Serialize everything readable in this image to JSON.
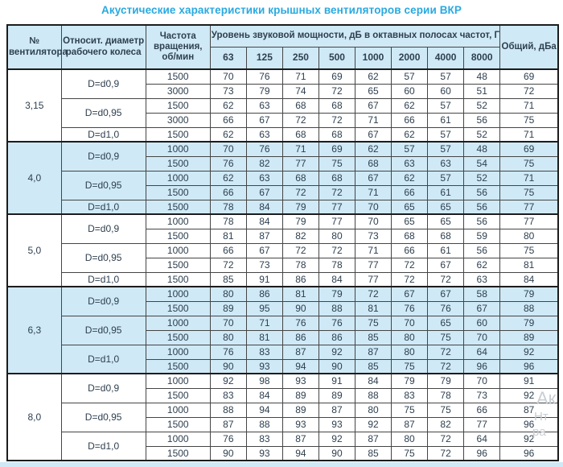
{
  "title": "Акустические характеристики крышных вентиляторов серии ВКР",
  "colors": {
    "accent": "#29a9e0",
    "cell_blue": "#cfe9f6",
    "text": "#2f4050",
    "border": "#1c1c1c"
  },
  "table": {
    "header": {
      "fan_number": "№ вентилятора",
      "diameter": "Относит. диаметр рабочего колеса",
      "rpm": "Частота вращения, об/мин",
      "spl_span": "Уровень звуковой мощности, дБ в октавных полосах частот, Гц",
      "frequencies": [
        "63",
        "125",
        "250",
        "500",
        "1000",
        "2000",
        "4000",
        "8000"
      ],
      "total": "Общий, дБа"
    },
    "groups": [
      {
        "fan": "3,15",
        "shade": "white",
        "diameters": [
          {
            "label": "D=d0,9",
            "rows": [
              {
                "rpm": "1500",
                "values": [
                  70,
                  76,
                  71,
                  69,
                  62,
                  57,
                  57,
                  48
                ],
                "total": 69
              },
              {
                "rpm": "3000",
                "values": [
                  73,
                  79,
                  74,
                  72,
                  65,
                  60,
                  60,
                  51
                ],
                "total": 72
              }
            ]
          },
          {
            "label": "D=d0,95",
            "rows": [
              {
                "rpm": "1500",
                "values": [
                  62,
                  63,
                  68,
                  68,
                  67,
                  62,
                  57,
                  52
                ],
                "total": 71
              },
              {
                "rpm": "3000",
                "values": [
                  66,
                  67,
                  72,
                  72,
                  71,
                  66,
                  61,
                  56
                ],
                "total": 75
              }
            ]
          },
          {
            "label": "D=d1,0",
            "rows": [
              {
                "rpm": "1500",
                "values": [
                  62,
                  63,
                  68,
                  68,
                  67,
                  62,
                  57,
                  52
                ],
                "total": 71
              }
            ]
          }
        ]
      },
      {
        "fan": "4,0",
        "shade": "blue",
        "diameters": [
          {
            "label": "D=d0,9",
            "rows": [
              {
                "rpm": "1000",
                "values": [
                  70,
                  76,
                  71,
                  69,
                  62,
                  57,
                  57,
                  48
                ],
                "total": 69
              },
              {
                "rpm": "1500",
                "values": [
                  76,
                  82,
                  77,
                  75,
                  68,
                  63,
                  63,
                  54
                ],
                "total": 75
              }
            ]
          },
          {
            "label": "D=d0,95",
            "rows": [
              {
                "rpm": "1000",
                "values": [
                  62,
                  63,
                  68,
                  68,
                  67,
                  62,
                  57,
                  52
                ],
                "total": 71
              },
              {
                "rpm": "1500",
                "values": [
                  66,
                  67,
                  72,
                  72,
                  71,
                  66,
                  61,
                  56
                ],
                "total": 75
              }
            ]
          },
          {
            "label": "D=d1,0",
            "rows": [
              {
                "rpm": "1500",
                "values": [
                  78,
                  84,
                  79,
                  77,
                  70,
                  65,
                  65,
                  56
                ],
                "total": 77
              }
            ]
          }
        ]
      },
      {
        "fan": "5,0",
        "shade": "white",
        "diameters": [
          {
            "label": "D=d0,9",
            "rows": [
              {
                "rpm": "1000",
                "values": [
                  78,
                  84,
                  79,
                  77,
                  70,
                  65,
                  65,
                  56
                ],
                "total": 77
              },
              {
                "rpm": "1500",
                "values": [
                  81,
                  87,
                  82,
                  80,
                  73,
                  68,
                  68,
                  59
                ],
                "total": 80
              }
            ]
          },
          {
            "label": "D=d0,95",
            "rows": [
              {
                "rpm": "1000",
                "values": [
                  66,
                  67,
                  72,
                  72,
                  71,
                  66,
                  61,
                  56
                ],
                "total": 75
              },
              {
                "rpm": "1500",
                "values": [
                  72,
                  73,
                  78,
                  78,
                  77,
                  72,
                  67,
                  62
                ],
                "total": 81
              }
            ]
          },
          {
            "label": "D=d1,0",
            "rows": [
              {
                "rpm": "1500",
                "values": [
                  85,
                  91,
                  86,
                  84,
                  77,
                  72,
                  72,
                  63
                ],
                "total": 84
              }
            ]
          }
        ]
      },
      {
        "fan": "6,3",
        "shade": "blue",
        "diameters": [
          {
            "label": "D=d0,9",
            "rows": [
              {
                "rpm": "1000",
                "values": [
                  80,
                  86,
                  81,
                  79,
                  72,
                  67,
                  67,
                  58
                ],
                "total": 79
              },
              {
                "rpm": "1500",
                "values": [
                  89,
                  95,
                  90,
                  88,
                  81,
                  76,
                  76,
                  67
                ],
                "total": 88
              }
            ]
          },
          {
            "label": "D=d0,95",
            "rows": [
              {
                "rpm": "1000",
                "values": [
                  70,
                  71,
                  76,
                  76,
                  75,
                  70,
                  65,
                  60
                ],
                "total": 79
              },
              {
                "rpm": "1500",
                "values": [
                  80,
                  81,
                  86,
                  86,
                  85,
                  80,
                  75,
                  70
                ],
                "total": 89
              }
            ]
          },
          {
            "label": "D=d1,0",
            "rows": [
              {
                "rpm": "1000",
                "values": [
                  76,
                  83,
                  87,
                  92,
                  87,
                  80,
                  72,
                  64
                ],
                "total": 92
              },
              {
                "rpm": "1500",
                "values": [
                  90,
                  93,
                  94,
                  90,
                  85,
                  75,
                  72,
                  96
                ],
                "total": 96
              }
            ]
          }
        ]
      },
      {
        "fan": "8,0",
        "shade": "white",
        "diameters": [
          {
            "label": "D=d0,9",
            "rows": [
              {
                "rpm": "1000",
                "values": [
                  92,
                  98,
                  93,
                  91,
                  84,
                  79,
                  79,
                  70
                ],
                "total": 91
              },
              {
                "rpm": "1500",
                "values": [
                  83,
                  84,
                  89,
                  89,
                  88,
                  83,
                  78,
                  73
                ],
                "total": 92
              }
            ]
          },
          {
            "label": "D=d0,95",
            "rows": [
              {
                "rpm": "1000",
                "values": [
                  88,
                  94,
                  89,
                  87,
                  80,
                  75,
                  75,
                  66
                ],
                "total": 87
              },
              {
                "rpm": "1500",
                "values": [
                  87,
                  88,
                  93,
                  93,
                  92,
                  87,
                  82,
                  77
                ],
                "total": 96
              }
            ]
          },
          {
            "label": "D=d1,0",
            "rows": [
              {
                "rpm": "1000",
                "values": [
                  76,
                  83,
                  87,
                  92,
                  87,
                  80,
                  72,
                  64
                ],
                "total": 92
              },
              {
                "rpm": "1500",
                "values": [
                  90,
                  93,
                  94,
                  90,
                  85,
                  75,
                  72,
                  96
                ],
                "total": 96
              }
            ]
          }
        ]
      }
    ]
  },
  "watermark": {
    "fragments": [
      "Ак",
      "Нт",
      "ра"
    ]
  }
}
